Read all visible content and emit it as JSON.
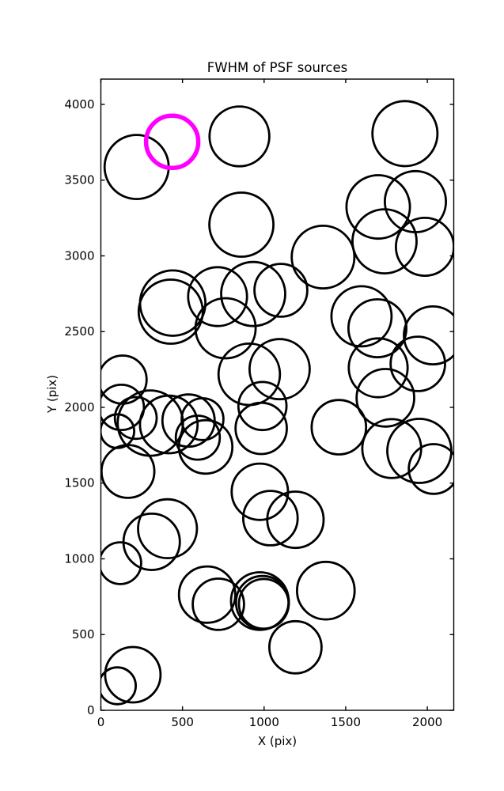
{
  "figure": {
    "title": "FWHM of PSF sources",
    "xlabel": "X (pix)",
    "ylabel": "Y (pix)"
  },
  "chart_data": {
    "type": "scatter",
    "title": "FWHM of PSF sources",
    "xlabel": "X (pix)",
    "ylabel": "Y (pix)",
    "xlim": [
      0,
      2162
    ],
    "ylim": [
      0,
      4167
    ],
    "x_ticks": [
      0,
      500,
      1000,
      1500,
      2000
    ],
    "y_ticks": [
      0,
      500,
      1000,
      1500,
      2000,
      2500,
      3000,
      3500,
      4000
    ],
    "grid": false,
    "legend": false,
    "marker_style": "open circle, radius ~ FWHM",
    "colors": {
      "source_stroke": "#000000",
      "highlight_stroke": "#ff00ff",
      "background": "#ffffff",
      "axis": "#000000"
    },
    "highlighted_source": {
      "x": 437,
      "y": 3753,
      "r": 166
    },
    "sources": [
      {
        "x": 219,
        "y": 3587,
        "r": 204
      },
      {
        "x": 849,
        "y": 3789,
        "r": 190
      },
      {
        "x": 1863,
        "y": 3807,
        "r": 207
      },
      {
        "x": 861,
        "y": 3206,
        "r": 204
      },
      {
        "x": 1699,
        "y": 3323,
        "r": 202
      },
      {
        "x": 1927,
        "y": 3358,
        "r": 194
      },
      {
        "x": 1738,
        "y": 3096,
        "r": 204
      },
      {
        "x": 1985,
        "y": 3060,
        "r": 184
      },
      {
        "x": 1361,
        "y": 2992,
        "r": 199
      },
      {
        "x": 1103,
        "y": 2773,
        "r": 168
      },
      {
        "x": 440,
        "y": 2688,
        "r": 208
      },
      {
        "x": 428,
        "y": 2632,
        "r": 204
      },
      {
        "x": 715,
        "y": 2731,
        "r": 187
      },
      {
        "x": 933,
        "y": 2748,
        "r": 204
      },
      {
        "x": 764,
        "y": 2522,
        "r": 191
      },
      {
        "x": 1597,
        "y": 2601,
        "r": 191
      },
      {
        "x": 1694,
        "y": 2522,
        "r": 184
      },
      {
        "x": 2034,
        "y": 2475,
        "r": 184
      },
      {
        "x": 909,
        "y": 2218,
        "r": 195
      },
      {
        "x": 1095,
        "y": 2252,
        "r": 191
      },
      {
        "x": 1699,
        "y": 2261,
        "r": 187
      },
      {
        "x": 1942,
        "y": 2287,
        "r": 173
      },
      {
        "x": 1743,
        "y": 2063,
        "r": 183
      },
      {
        "x": 1782,
        "y": 1728,
        "r": 187
      },
      {
        "x": 1951,
        "y": 1713,
        "r": 204
      },
      {
        "x": 2039,
        "y": 1593,
        "r": 158
      },
      {
        "x": 1458,
        "y": 1869,
        "r": 173
      },
      {
        "x": 990,
        "y": 2009,
        "r": 153
      },
      {
        "x": 982,
        "y": 1861,
        "r": 163
      },
      {
        "x": 974,
        "y": 1443,
        "r": 179
      },
      {
        "x": 1039,
        "y": 1269,
        "r": 173
      },
      {
        "x": 1192,
        "y": 1258,
        "r": 179
      },
      {
        "x": 133,
        "y": 2183,
        "r": 153
      },
      {
        "x": 125,
        "y": 2000,
        "r": 144
      },
      {
        "x": 214,
        "y": 1930,
        "r": 133
      },
      {
        "x": 101,
        "y": 1843,
        "r": 107
      },
      {
        "x": 303,
        "y": 1896,
        "r": 208
      },
      {
        "x": 416,
        "y": 1887,
        "r": 183
      },
      {
        "x": 537,
        "y": 1913,
        "r": 166
      },
      {
        "x": 594,
        "y": 1800,
        "r": 140
      },
      {
        "x": 623,
        "y": 1922,
        "r": 133
      },
      {
        "x": 166,
        "y": 1577,
        "r": 168
      },
      {
        "x": 642,
        "y": 1739,
        "r": 170
      },
      {
        "x": 408,
        "y": 1199,
        "r": 187
      },
      {
        "x": 311,
        "y": 1112,
        "r": 179
      },
      {
        "x": 119,
        "y": 971,
        "r": 133
      },
      {
        "x": 651,
        "y": 764,
        "r": 179
      },
      {
        "x": 720,
        "y": 700,
        "r": 163
      },
      {
        "x": 974,
        "y": 721,
        "r": 183
      },
      {
        "x": 990,
        "y": 712,
        "r": 168
      },
      {
        "x": 998,
        "y": 703,
        "r": 158
      },
      {
        "x": 1378,
        "y": 790,
        "r": 183
      },
      {
        "x": 1192,
        "y": 416,
        "r": 166
      },
      {
        "x": 196,
        "y": 235,
        "r": 176
      },
      {
        "x": 101,
        "y": 162,
        "r": 117
      }
    ]
  }
}
